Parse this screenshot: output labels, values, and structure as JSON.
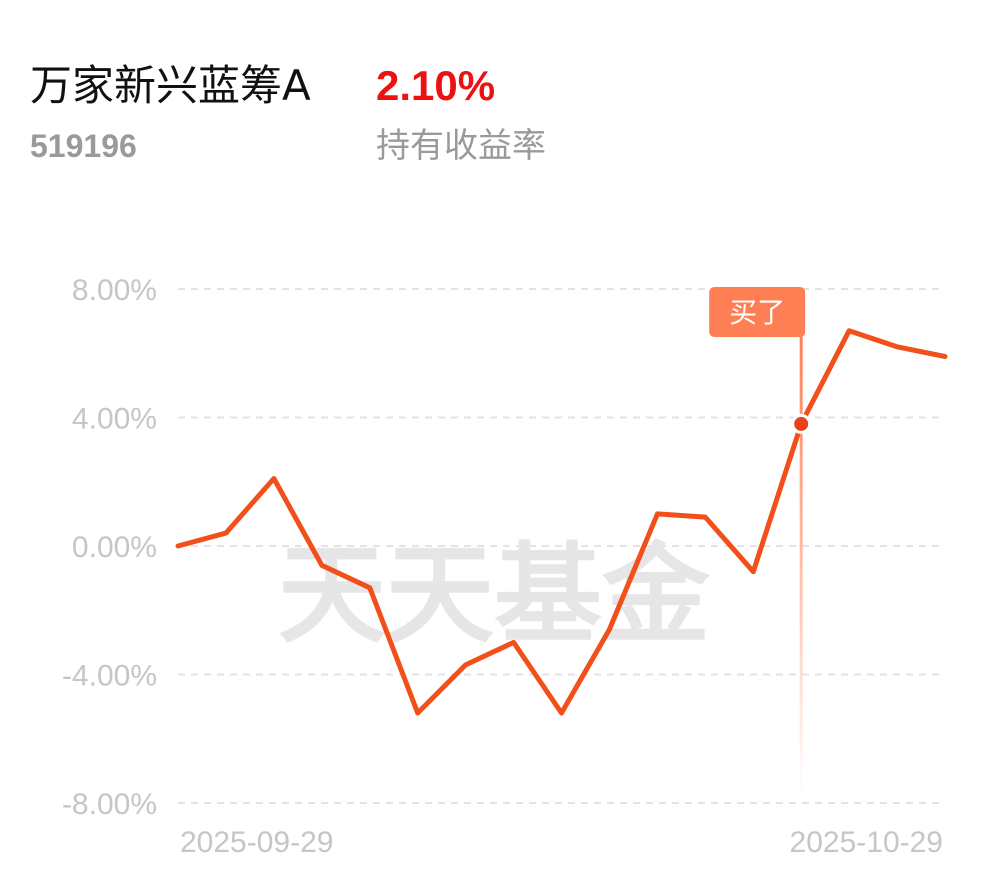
{
  "header": {
    "fund_name": "万家新兴蓝筹A",
    "fund_code": "519196",
    "holding_return": "2.10%",
    "holding_return_label": "持有收益率"
  },
  "watermark": "天天基金",
  "colors": {
    "line": "#f2501a",
    "return_value": "#ee1111",
    "marker": "#ff7f55",
    "grid": "#e3e3e3",
    "axis_text": "#c6c6c6"
  },
  "chart_data": {
    "type": "line",
    "y_unit": "%",
    "ylim": [
      -8,
      8
    ],
    "y_ticks": [
      8,
      4,
      0,
      -4,
      -8
    ],
    "y_tick_labels": [
      "8.00%",
      "4.00%",
      "0.00%",
      "-4.00%",
      "-8.00%"
    ],
    "x_labels": [
      "2025-09-29",
      "2025-10-29"
    ],
    "grid": true,
    "series": [
      {
        "values": [
          0.0,
          0.4,
          2.1,
          -0.6,
          -1.3,
          -5.2,
          -3.7,
          -3.0,
          -5.2,
          -2.6,
          1.0,
          0.9,
          -0.8,
          3.8,
          6.7,
          6.2,
          5.9
        ]
      }
    ],
    "annotation": {
      "label": "买了",
      "index": 13,
      "value": 3.8
    }
  }
}
